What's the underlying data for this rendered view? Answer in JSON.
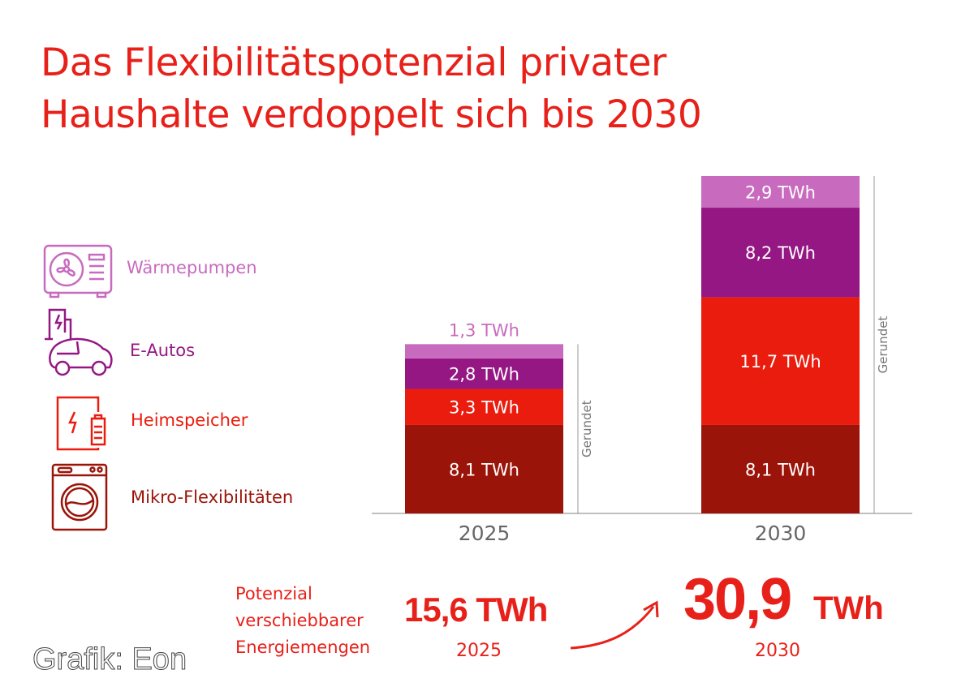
{
  "title_line1": "Das Flexibilitätspotenzial privater",
  "title_line2": "Haushalte verdoppelt sich bis 2030",
  "colors": {
    "accent": "#e8201a",
    "waermepumpen": "#c86bbf",
    "eautos": "#951784",
    "heimspeicher": "#ea1c0e",
    "mikro": "#9b1409",
    "axis": "#999999"
  },
  "legend": [
    {
      "label": "Wärmepumpen",
      "icon": "heat-pump-icon"
    },
    {
      "label": "E-Autos",
      "icon": "electric-car-icon"
    },
    {
      "label": "Heimspeicher",
      "icon": "home-battery-icon"
    },
    {
      "label": "Mikro-Flexibilitäten",
      "icon": "washing-machine-icon"
    }
  ],
  "chart_data": {
    "type": "bar",
    "stacked": true,
    "categories": [
      "2025",
      "2030"
    ],
    "unit": "TWh",
    "series": [
      {
        "name": "Mikro-Flexibilitäten",
        "values": [
          8.1,
          8.1
        ],
        "labels": [
          "8,1 TWh",
          "8,1 TWh"
        ]
      },
      {
        "name": "Heimspeicher",
        "values": [
          3.3,
          11.7
        ],
        "labels": [
          "3,3 TWh",
          "11,7 TWh"
        ]
      },
      {
        "name": "E-Autos",
        "values": [
          2.8,
          8.2
        ],
        "labels": [
          "2,8 TWh",
          "8,2 TWh"
        ]
      },
      {
        "name": "Wärmepumpen",
        "values": [
          1.3,
          2.9
        ],
        "labels": [
          "1,3 TWh",
          "2,9 TWh"
        ]
      }
    ],
    "annotation": "Gerundet",
    "ylim": [
      0,
      30.9
    ]
  },
  "summary": {
    "label_lines": [
      "Potenzial",
      "verschiebbarer",
      "Energiemengen"
    ],
    "value_2025": "15,6 TWh",
    "year_2025": "2025",
    "value_2030_number": "30,9",
    "value_2030_unit": "TWh",
    "year_2030": "2030"
  },
  "credit": "Grafik: Eon"
}
